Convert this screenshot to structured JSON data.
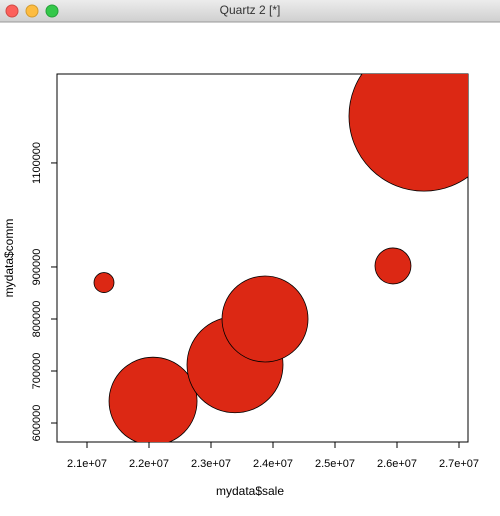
{
  "window_title": "Quartz 2 [*]",
  "chart_data": {
    "type": "bubble",
    "xlabel": "mydata$sale",
    "ylabel": "mydata$comm",
    "x": [
      21274000,
      22065000,
      23387000,
      23871000,
      25935000,
      26435000
    ],
    "y": [
      870000,
      642000,
      712000,
      800000,
      902000,
      1190000
    ],
    "sizes": [
      10,
      44,
      48,
      43,
      18,
      75
    ],
    "color": "#dc2814",
    "xlim": [
      20516000,
      27145000
    ],
    "ylim": [
      563500,
      1271000
    ],
    "xticks": [
      {
        "value": 21000000,
        "label": "2.1e+07"
      },
      {
        "value": 22000000,
        "label": "2.2e+07"
      },
      {
        "value": 23000000,
        "label": "2.3e+07"
      },
      {
        "value": 24000000,
        "label": "2.4e+07"
      },
      {
        "value": 25000000,
        "label": "2.5e+07"
      },
      {
        "value": 26000000,
        "label": "2.6e+07"
      },
      {
        "value": 27000000,
        "label": "2.7e+07"
      }
    ],
    "yticks": [
      600000,
      700000,
      800000,
      900000,
      1100000
    ],
    "grid": false
  }
}
